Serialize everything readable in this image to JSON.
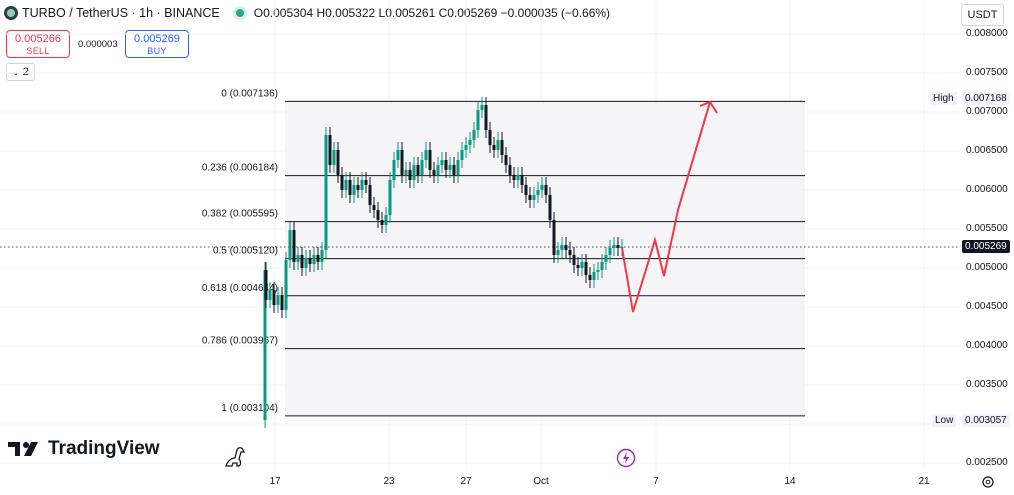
{
  "header": {
    "symbol": "TURBO / TetherUS · 1h · BINANCE",
    "ohlc": "O0.005304 H0.005322 L0.005261 C0.005269 −0.000035 (−0.66%)"
  },
  "trade": {
    "sell_price": "0.005266",
    "sell_label": "SELL",
    "spread": "0.000003",
    "buy_price": "0.005269",
    "buy_label": "BUY"
  },
  "layers_count": "2",
  "currency": "USDT",
  "brand": "TradingView",
  "price_axis": [
    "0.008000",
    "0.007500",
    "0.007000",
    "0.006500",
    "0.006000",
    "0.005500",
    "0.005000",
    "0.004500",
    "0.004000",
    "0.003500",
    "0.003000",
    "0.002500"
  ],
  "high": {
    "label": "High",
    "value": "0.007168"
  },
  "low": {
    "label": "Low",
    "value": "0.003057"
  },
  "current_price": "0.005269",
  "time_axis": [
    "17",
    "23",
    "27",
    "Oct",
    "7",
    "14",
    "21"
  ],
  "fib_levels": [
    {
      "ratio": 0,
      "label": "0 (0.007136)",
      "price": 0.007136
    },
    {
      "ratio": 0.236,
      "label": "0.236 (0.006184)",
      "price": 0.006184
    },
    {
      "ratio": 0.382,
      "label": "0.382 (0.005595)",
      "price": 0.005595
    },
    {
      "ratio": 0.5,
      "label": "0.5 (0.005120)",
      "price": 0.00512
    },
    {
      "ratio": 0.618,
      "label": "0.618 (0.004644)",
      "price": 0.004644
    },
    {
      "ratio": 0.786,
      "label": "0.786 (0.003967)",
      "price": 0.003967
    },
    {
      "ratio": 1,
      "label": "1 (0.003104)",
      "price": 0.003104
    }
  ],
  "colors": {
    "bull": "#089981",
    "candle": "#131722",
    "projection": "#f23645",
    "grid": "#f0f3fa"
  }
}
